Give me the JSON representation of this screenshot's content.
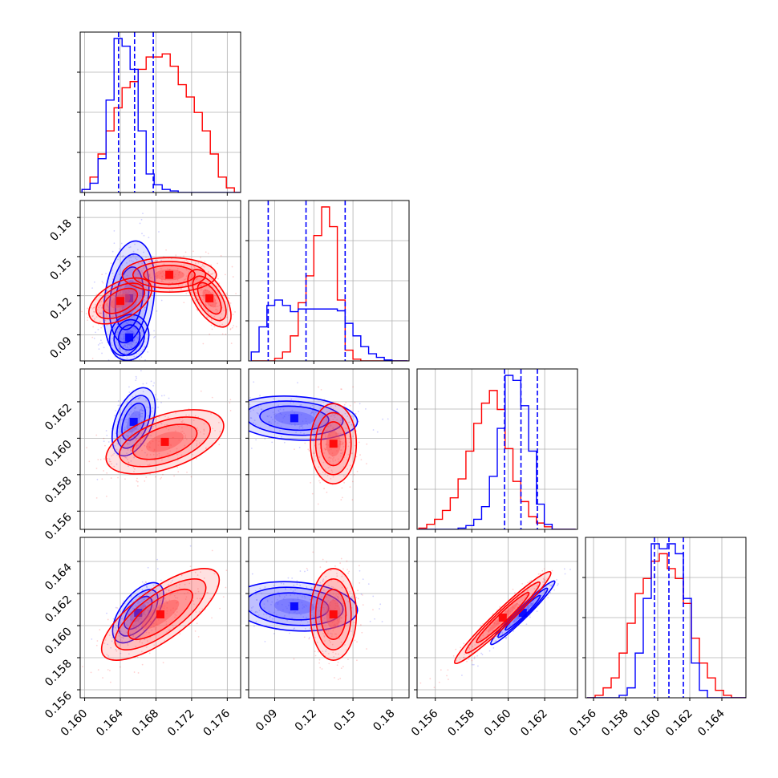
{
  "chart_data": {
    "type": "corner",
    "grid": true,
    "colors": {
      "series_a": "#0000ff",
      "series_b": "#ff0000"
    },
    "params": [
      {
        "range": [
          0.1595,
          0.1775
        ],
        "ticks": [
          "0.160",
          "0.164",
          "0.168",
          "0.172",
          "0.176"
        ],
        "tick_values": [
          0.16,
          0.164,
          0.168,
          0.172,
          0.176
        ]
      },
      {
        "range": [
          0.07,
          0.193
        ],
        "ticks": [
          "0.09",
          "0.12",
          "0.15",
          "0.18"
        ],
        "tick_values": [
          0.09,
          0.12,
          0.15,
          0.18
        ]
      },
      {
        "range": [
          0.155,
          0.1638
        ],
        "ticks": [
          "0.156",
          "0.158",
          "0.160",
          "0.162"
        ],
        "tick_values": [
          0.156,
          0.158,
          0.16,
          0.162
        ]
      },
      {
        "range": [
          0.1555,
          0.1655
        ],
        "ticks": [
          "0.156",
          "0.158",
          "0.160",
          "0.162",
          "0.164"
        ],
        "tick_values": [
          0.156,
          0.158,
          0.16,
          0.162,
          0.164
        ]
      }
    ],
    "row_tick_labels": {
      "1": [
        "0.09",
        "0.12",
        "0.15",
        "0.18"
      ],
      "2": [
        "0.156",
        "0.158",
        "0.160",
        "0.162"
      ],
      "3": [
        "0.156",
        "0.158",
        "0.160",
        "0.162",
        "0.164"
      ]
    },
    "row_tick_values": {
      "1": [
        0.09,
        0.12,
        0.15,
        0.18
      ],
      "2": [
        0.156,
        0.158,
        0.16,
        0.162
      ],
      "3": [
        0.156,
        0.158,
        0.16,
        0.162,
        0.164
      ]
    },
    "quantiles_series_a": [
      [
        0.1638,
        0.1656,
        0.1677
      ],
      [
        0.085,
        0.114,
        0.144
      ],
      [
        0.1598,
        0.1607,
        0.1616
      ],
      [
        0.1598,
        0.1607,
        0.1616
      ]
    ],
    "histograms": [
      {
        "series_a": {
          "edges_start": 0.1597,
          "bin": 0.0009,
          "counts": [
            2,
            6,
            22,
            60,
            100,
            95,
            80,
            40,
            12,
            5,
            2,
            1,
            0,
            0,
            0,
            0,
            0,
            0,
            0,
            0
          ]
        },
        "series_b": {
          "edges_start": 0.1597,
          "bin": 0.0009,
          "counts": [
            2,
            10,
            25,
            40,
            55,
            68,
            72,
            80,
            88,
            88,
            90,
            82,
            70,
            62,
            52,
            40,
            25,
            10,
            3,
            0
          ]
        }
      },
      {
        "series_a": {
          "edges_start": 0.072,
          "bin": 0.006,
          "counts": [
            10,
            38,
            62,
            68,
            62,
            55,
            58,
            58,
            58,
            58,
            58,
            56,
            42,
            28,
            16,
            8,
            4,
            1,
            0,
            0
          ]
        },
        "series_b": {
          "edges_start": 0.072,
          "bin": 0.006,
          "counts": [
            0,
            0,
            0,
            3,
            10,
            28,
            65,
            95,
            140,
            172,
            150,
            68,
            12,
            2,
            0,
            0,
            0,
            0,
            0,
            0
          ]
        }
      },
      {
        "series_a": {
          "edges_start": 0.1551,
          "bin": 0.00043,
          "counts": [
            0,
            0,
            0,
            0,
            0,
            1,
            3,
            8,
            18,
            42,
            80,
            122,
            118,
            98,
            62,
            20,
            4,
            0,
            0,
            0
          ]
        },
        "series_b": {
          "edges_start": 0.1551,
          "bin": 0.00043,
          "counts": [
            1,
            4,
            8,
            15,
            25,
            40,
            62,
            84,
            100,
            110,
            95,
            64,
            38,
            22,
            10,
            5,
            2,
            0,
            0,
            0
          ]
        }
      },
      {
        "series_a": {
          "edges_start": 0.1556,
          "bin": 0.0005,
          "counts": [
            0,
            0,
            0,
            0,
            1,
            4,
            18,
            40,
            62,
            60,
            62,
            58,
            40,
            14,
            3,
            0,
            0,
            0,
            0,
            0
          ]
        },
        "series_b": {
          "edges_start": 0.1556,
          "bin": 0.0005,
          "counts": [
            0,
            1,
            4,
            8,
            18,
            30,
            42,
            48,
            55,
            58,
            52,
            48,
            38,
            24,
            14,
            8,
            3,
            1,
            0,
            0
          ]
        }
      }
    ],
    "blobs": {
      "1-0": {
        "series_a": [
          {
            "mx": 0.165,
            "my": 0.118,
            "sx": 0.0013,
            "sy": 0.02,
            "rho": 0.25
          },
          {
            "mx": 0.165,
            "my": 0.088,
            "sx": 0.001,
            "sy": 0.008,
            "rho": 0.1
          }
        ],
        "series_b": [
          {
            "mx": 0.164,
            "my": 0.116,
            "sx": 0.0016,
            "sy": 0.008,
            "rho": 0.5
          },
          {
            "mx": 0.1695,
            "my": 0.136,
            "sx": 0.0024,
            "sy": 0.006,
            "rho": 0.0
          },
          {
            "mx": 0.174,
            "my": 0.118,
            "sx": 0.0011,
            "sy": 0.01,
            "rho": -0.6
          }
        ]
      },
      "2-0": {
        "series_a": [
          {
            "mx": 0.1655,
            "my": 0.1609,
            "sx": 0.0011,
            "sy": 0.00085,
            "rho": 0.45
          }
        ],
        "series_b": [
          {
            "mx": 0.169,
            "my": 0.1598,
            "sx": 0.003,
            "sy": 0.0008,
            "rho": 0.5
          }
        ]
      },
      "2-1": {
        "series_a": [
          {
            "mx": 0.105,
            "my": 0.1611,
            "sx": 0.022,
            "sy": 0.00055,
            "rho": -0.15
          }
        ],
        "series_b": [
          {
            "mx": 0.135,
            "my": 0.1597,
            "sx": 0.008,
            "sy": 0.001,
            "rho": 0.0
          }
        ]
      },
      "3-0": {
        "series_a": [
          {
            "mx": 0.166,
            "my": 0.1608,
            "sx": 0.0013,
            "sy": 0.00085,
            "rho": 0.6
          }
        ],
        "series_b": [
          {
            "mx": 0.1685,
            "my": 0.1607,
            "sx": 0.003,
            "sy": 0.0013,
            "rho": 0.75
          }
        ]
      },
      "3-1": {
        "series_a": [
          {
            "mx": 0.105,
            "my": 0.1612,
            "sx": 0.022,
            "sy": 0.0007,
            "rho": -0.15
          }
        ],
        "series_b": [
          {
            "mx": 0.135,
            "my": 0.1607,
            "sx": 0.008,
            "sy": 0.0013,
            "rho": 0.0
          }
        ]
      },
      "3-2": {
        "series_a": [
          {
            "mx": 0.1608,
            "my": 0.1608,
            "sx": 0.0008,
            "sy": 0.0009,
            "rho": 0.97
          }
        ],
        "series_b": [
          {
            "mx": 0.1597,
            "my": 0.1605,
            "sx": 0.0012,
            "sy": 0.0013,
            "rho": 0.97
          }
        ]
      }
    }
  }
}
